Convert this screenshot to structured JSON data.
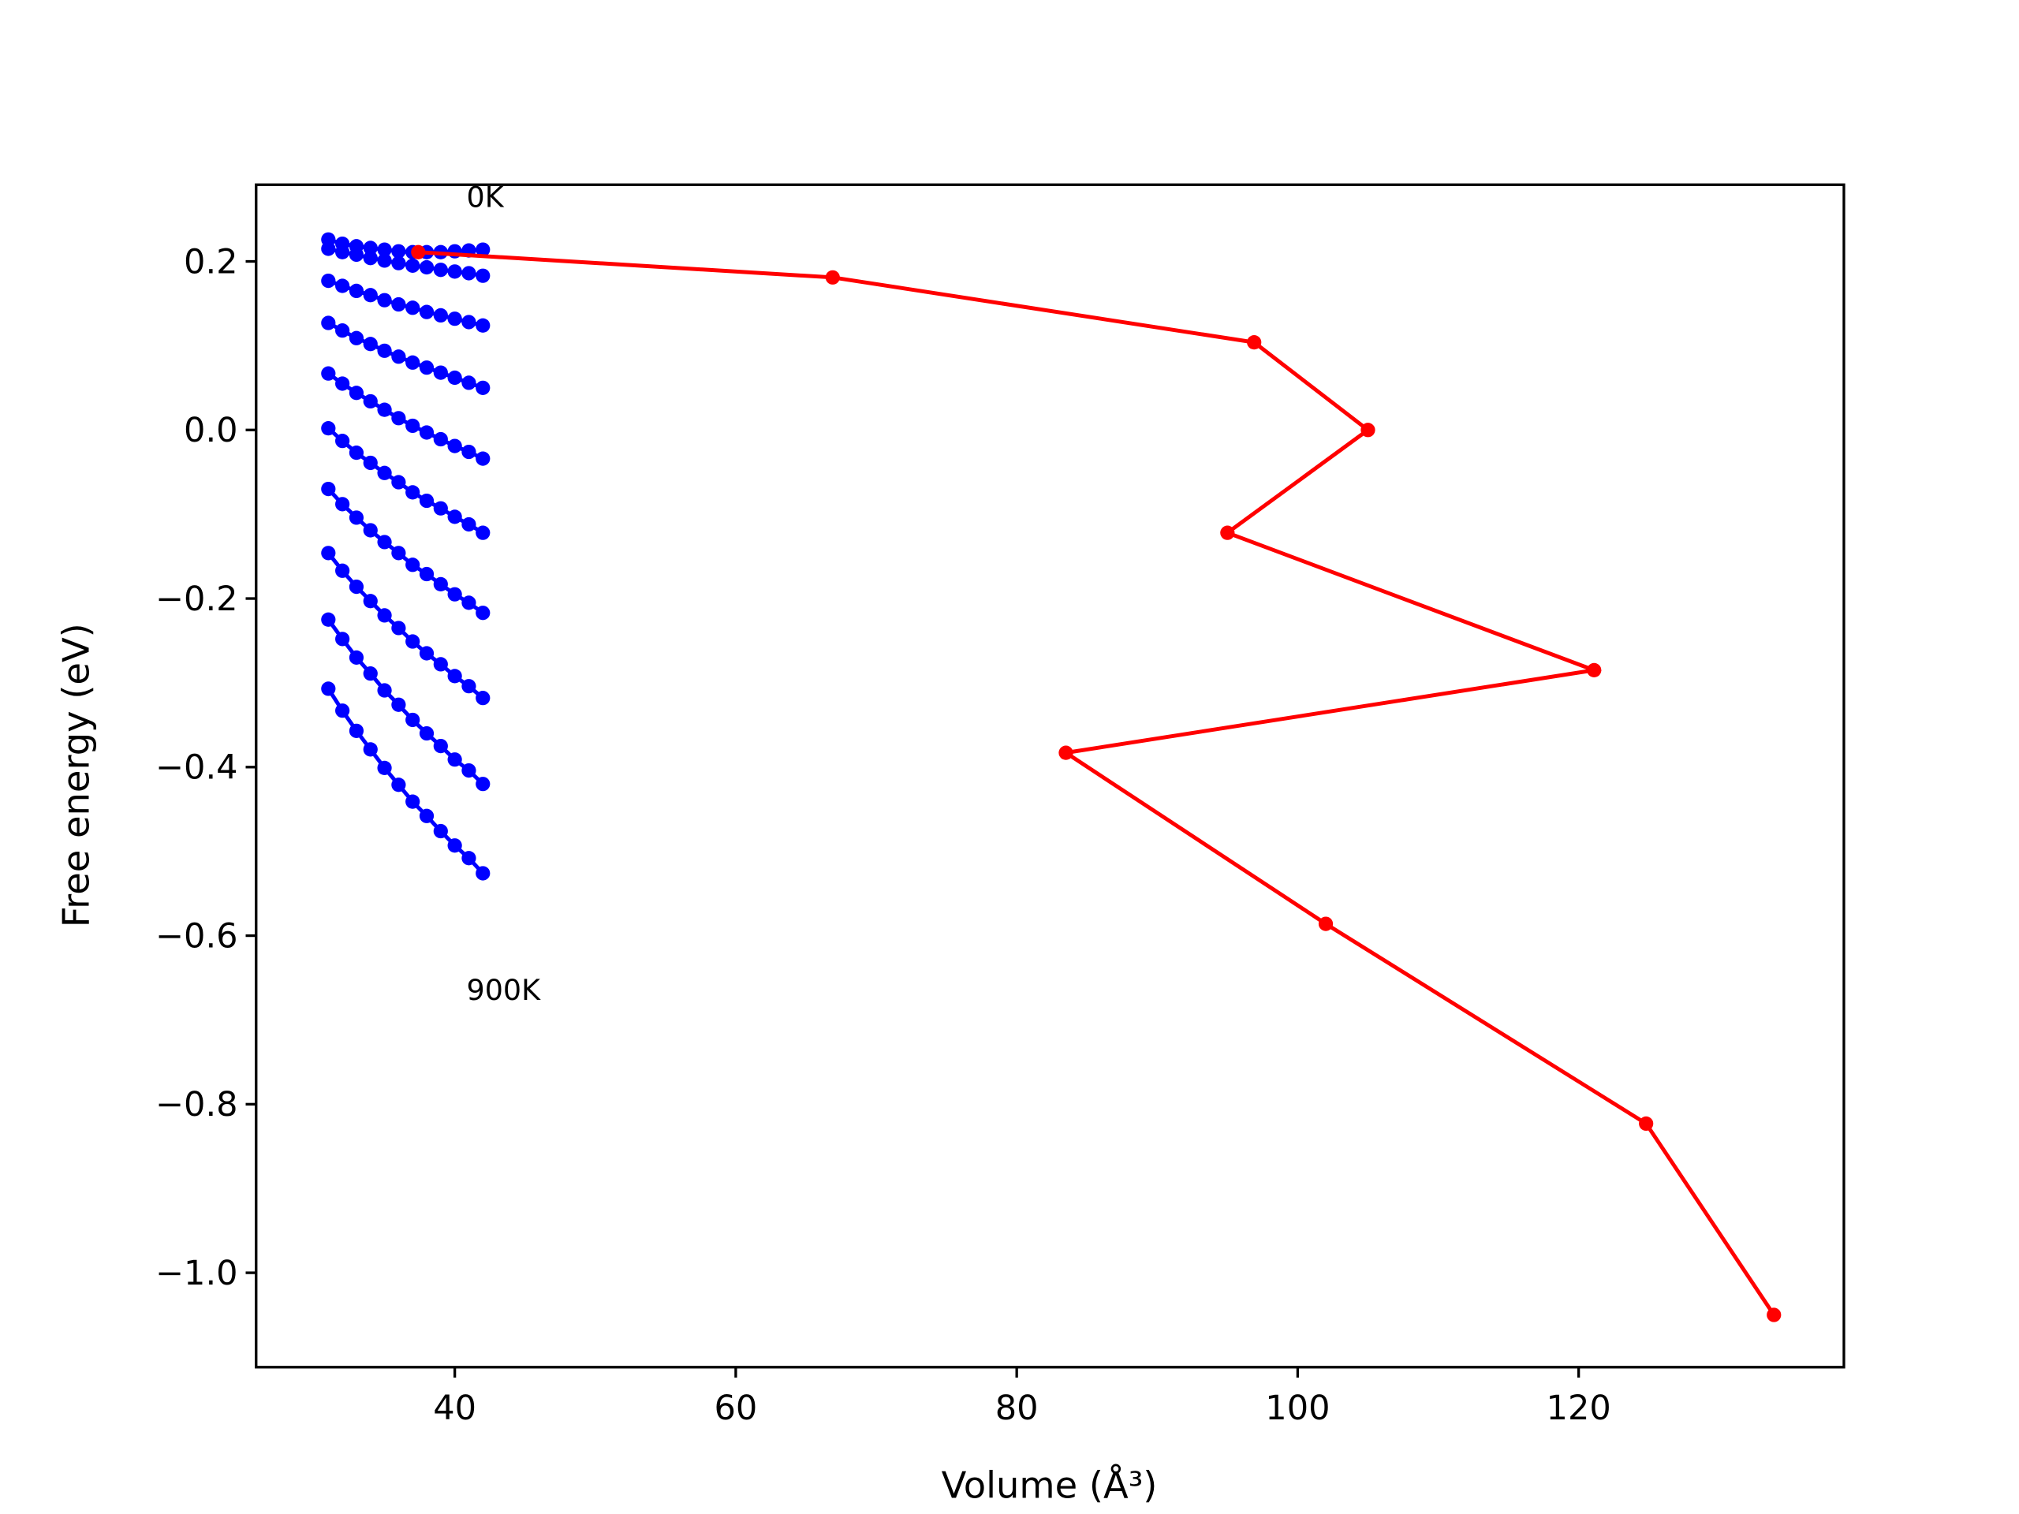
{
  "chart_data": {
    "type": "line",
    "x_label": "Volume (Å³)",
    "y_label": "Free energy (eV)",
    "annotations": [
      "0K",
      "900K"
    ],
    "xlim": [
      25.86,
      138.88
    ],
    "ylim": [
      -1.112,
      0.291
    ],
    "xticks": [
      40,
      60,
      80,
      100,
      120
    ],
    "yticks": [
      {
        "value": -1.0,
        "label": "−1.0"
      },
      {
        "value": -0.8,
        "label": "−0.8"
      },
      {
        "value": -0.6,
        "label": "−0.6"
      },
      {
        "value": -0.4,
        "label": "−0.4"
      },
      {
        "value": -0.2,
        "label": "−0.2"
      },
      {
        "value": 0.0,
        "label": "0.0"
      },
      0.2
    ],
    "series": [
      {
        "color": "#0000ff",
        "x": [
          31,
          32,
          33,
          34,
          35,
          36,
          37,
          38,
          39,
          40,
          41,
          42
        ],
        "values": [
          0.226,
          0.221,
          0.218,
          0.216,
          0.214,
          0.212,
          0.211,
          0.211,
          0.211,
          0.212,
          0.213,
          0.214
        ]
      },
      {
        "color": "#0000ff",
        "x": [
          31,
          32,
          33,
          34,
          35,
          36,
          37,
          38,
          39,
          40,
          41,
          42
        ],
        "values": [
          0.215,
          0.211,
          0.208,
          0.204,
          0.201,
          0.198,
          0.195,
          0.193,
          0.19,
          0.188,
          0.186,
          0.183
        ]
      },
      {
        "color": "#0000ff",
        "x": [
          31,
          32,
          33,
          34,
          35,
          36,
          37,
          38,
          39,
          40,
          41,
          42
        ],
        "values": [
          0.177,
          0.171,
          0.165,
          0.16,
          0.154,
          0.149,
          0.145,
          0.14,
          0.136,
          0.132,
          0.128,
          0.124
        ]
      },
      {
        "color": "#0000ff",
        "x": [
          31,
          32,
          33,
          34,
          35,
          36,
          37,
          38,
          39,
          40,
          41,
          42
        ],
        "values": [
          0.127,
          0.118,
          0.109,
          0.102,
          0.094,
          0.087,
          0.08,
          0.074,
          0.068,
          0.062,
          0.056,
          0.05
        ]
      },
      {
        "color": "#0000ff",
        "x": [
          31,
          32,
          33,
          34,
          35,
          36,
          37,
          38,
          39,
          40,
          41,
          42
        ],
        "values": [
          0.067,
          0.055,
          0.044,
          0.034,
          0.024,
          0.014,
          0.005,
          -0.003,
          -0.011,
          -0.019,
          -0.026,
          -0.034
        ]
      },
      {
        "color": "#0000ff",
        "x": [
          31,
          32,
          33,
          34,
          35,
          36,
          37,
          38,
          39,
          40,
          41,
          42
        ],
        "values": [
          0.002,
          -0.013,
          -0.027,
          -0.039,
          -0.051,
          -0.062,
          -0.074,
          -0.084,
          -0.093,
          -0.103,
          -0.112,
          -0.122
        ]
      },
      {
        "color": "#0000ff",
        "x": [
          31,
          32,
          33,
          34,
          35,
          36,
          37,
          38,
          39,
          40,
          41,
          42
        ],
        "values": [
          -0.07,
          -0.088,
          -0.104,
          -0.119,
          -0.133,
          -0.146,
          -0.16,
          -0.171,
          -0.183,
          -0.195,
          -0.205,
          -0.217
        ]
      },
      {
        "color": "#0000ff",
        "x": [
          31,
          32,
          33,
          34,
          35,
          36,
          37,
          38,
          39,
          40,
          41,
          42
        ],
        "values": [
          -0.146,
          -0.167,
          -0.186,
          -0.203,
          -0.22,
          -0.235,
          -0.251,
          -0.265,
          -0.278,
          -0.292,
          -0.304,
          -0.318
        ]
      },
      {
        "color": "#0000ff",
        "x": [
          31,
          32,
          33,
          34,
          35,
          36,
          37,
          38,
          39,
          40,
          41,
          42
        ],
        "values": [
          -0.225,
          -0.248,
          -0.27,
          -0.289,
          -0.309,
          -0.326,
          -0.344,
          -0.36,
          -0.375,
          -0.391,
          -0.404,
          -0.42
        ]
      },
      {
        "color": "#0000ff",
        "x": [
          31,
          32,
          33,
          34,
          35,
          36,
          37,
          38,
          39,
          40,
          41,
          42
        ],
        "values": [
          -0.307,
          -0.333,
          -0.357,
          -0.379,
          -0.401,
          -0.421,
          -0.441,
          -0.458,
          -0.476,
          -0.493,
          -0.508,
          -0.526
        ]
      },
      {
        "color": "#ff0000",
        "x": [
          37.4,
          66.9,
          96.9,
          105.0,
          95.0,
          121.1,
          83.5,
          102.0,
          124.8,
          133.9
        ],
        "values": [
          0.211,
          0.181,
          0.104,
          0.0,
          -0.122,
          -0.285,
          -0.383,
          -0.586,
          -0.823,
          -1.05
        ]
      }
    ]
  }
}
